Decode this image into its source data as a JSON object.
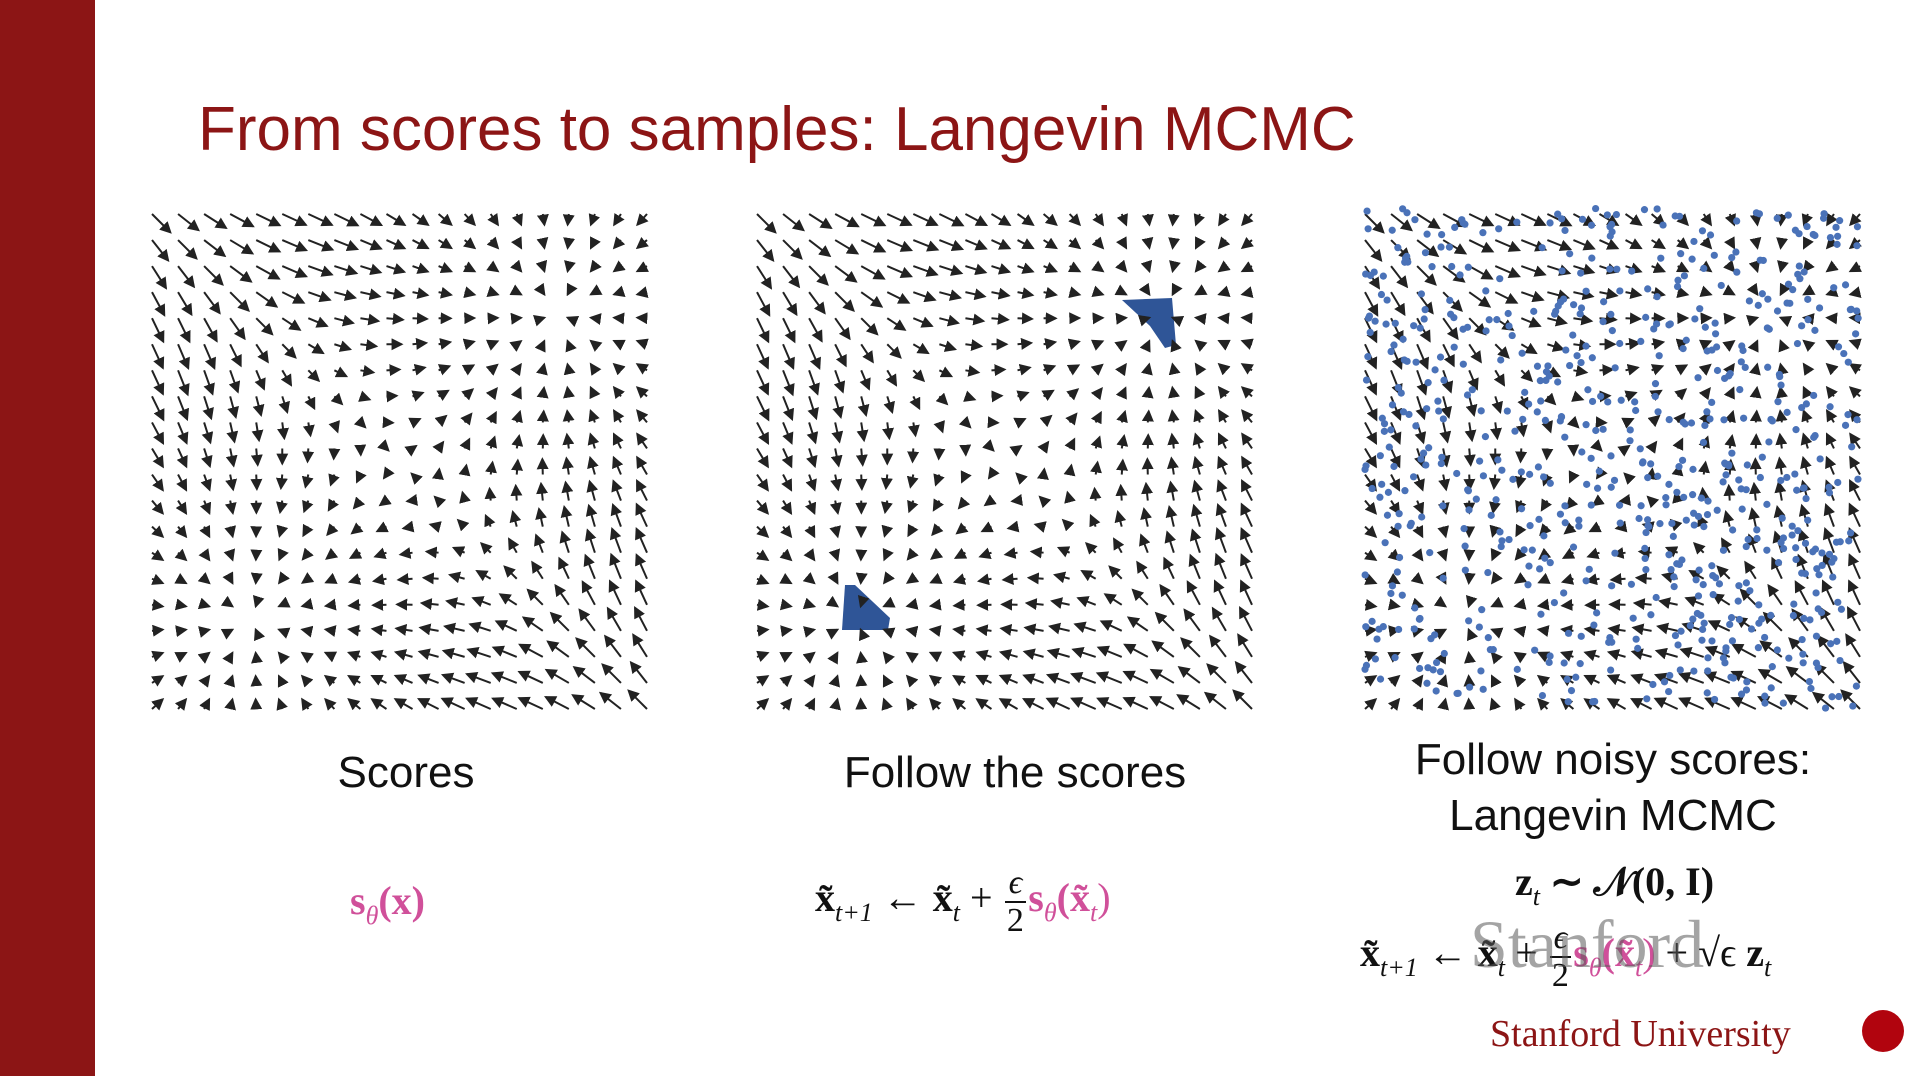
{
  "slide": {
    "title": "From scores to samples: Langevin MCMC",
    "panels": [
      {
        "caption": [
          "Scores"
        ],
        "formula": [
          "s",
          "θ",
          "(x)"
        ]
      },
      {
        "caption": [
          "Follow the scores"
        ],
        "formula": [
          "x̃",
          "t+1",
          " ← ",
          "x̃",
          "t",
          " + ",
          "ϵ",
          "2",
          "s",
          "θ",
          "(x̃",
          "t",
          ")"
        ]
      },
      {
        "caption": [
          "Follow noisy scores:",
          "Langevin MCMC"
        ],
        "formula_top": [
          "z",
          "t",
          " ∼ 𝒩(0, I)"
        ],
        "formula": [
          "x̃",
          "t+1",
          " ← ",
          "x̃",
          "t",
          " + ",
          "ϵ",
          "2",
          "s",
          "θ",
          "(x̃",
          "t",
          ")",
          " + √ϵ ",
          "z",
          "t"
        ]
      }
    ],
    "watermark": "Stanford",
    "footer": "Stanford University"
  }
}
